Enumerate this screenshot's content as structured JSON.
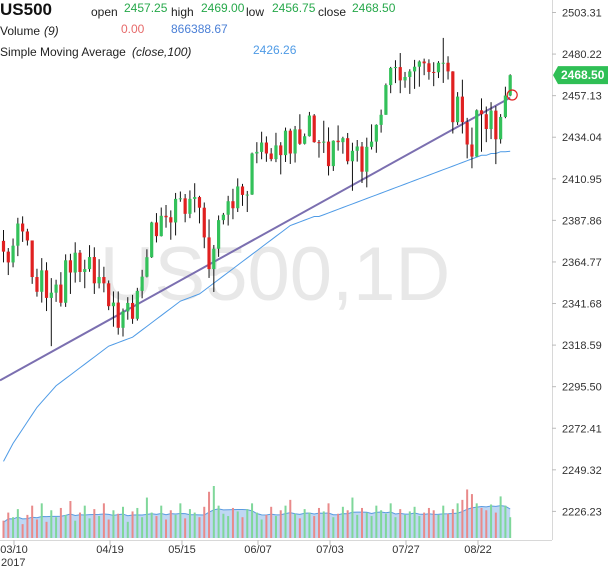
{
  "legend": {
    "symbol": "US500",
    "open_label": "open",
    "open": "2457.25",
    "high_label": "high",
    "high": "2469.00",
    "low_label": "low",
    "low": "2456.75",
    "close_label": "close",
    "close": "2468.50",
    "volume_label": "Volume",
    "volume_param": "(9)",
    "volume_value_1": "0.00",
    "volume_value_2": "866388.67",
    "sma_label": "Simple Moving Average",
    "sma_param": "(close,100)",
    "sma_value": "2426.26"
  },
  "colors": {
    "up": "#33c15a",
    "down": "#e02020",
    "sma": "#4f9be6",
    "trendline": "#7b6fb0",
    "volume_fill": "#a9c9ef",
    "volume_line": "#5a9be0",
    "last_price_bg": "#2fbf55"
  },
  "chart_data": {
    "type": "candlestick",
    "symbol": "US500",
    "interval": "1D",
    "watermark": "US500,1D",
    "x_ticks": [
      "03/10",
      "04/19",
      "05/15",
      "06/07",
      "07/03",
      "07/27",
      "08/22"
    ],
    "x_year": "2017",
    "y_ticks": [
      "2503.31",
      "2480.22",
      "2457.13",
      "2434.04",
      "2410.95",
      "2387.86",
      "2364.77",
      "2341.68",
      "2318.59",
      "2295.50",
      "2272.41",
      "2249.32",
      "2226.23"
    ],
    "ylim": [
      2215.0,
      2510.0
    ],
    "last_price": "2468.50",
    "sma_period": 100,
    "sma_values": [
      2254,
      2259,
      2264,
      2268,
      2272,
      2276,
      2280,
      2284,
      2287,
      2290,
      2293,
      2296,
      2298,
      2300,
      2302,
      2304,
      2306,
      2308,
      2310,
      2312,
      2314,
      2316,
      2318,
      2319,
      2320,
      2321,
      2322,
      2323,
      2325,
      2327,
      2329,
      2331,
      2333,
      2335,
      2337,
      2339,
      2341,
      2343,
      2344,
      2345,
      2346,
      2347,
      2349,
      2351,
      2353,
      2355,
      2357,
      2359,
      2361,
      2363,
      2365,
      2367,
      2369,
      2371,
      2373,
      2375,
      2377,
      2379,
      2381,
      2383,
      2385,
      2386,
      2387,
      2388,
      2389,
      2390,
      2390,
      2391,
      2392,
      2393,
      2394,
      2395,
      2396,
      2397,
      2398,
      2399,
      2400,
      2401,
      2402,
      2403,
      2404,
      2405,
      2406,
      2407,
      2408,
      2409,
      2410,
      2411,
      2412,
      2413,
      2414,
      2415,
      2416,
      2417,
      2418,
      2419,
      2420,
      2421,
      2422,
      2423,
      2424,
      2424,
      2425,
      2425,
      2426,
      2426,
      2426.26
    ],
    "trendline": {
      "from": [
        0,
        2299
      ],
      "to": [
        106,
        2456
      ]
    },
    "ohlc": [
      [
        2376.5,
        2382.5,
        2364.5,
        2370.5
      ],
      [
        2370.5,
        2372.5,
        2357.5,
        2364.5
      ],
      [
        2364.5,
        2377.8,
        2361.8,
        2373.8
      ],
      [
        2373.8,
        2389.3,
        2368.0,
        2386.1
      ],
      [
        2386.1,
        2390.1,
        2375.9,
        2381.7
      ],
      [
        2381.7,
        2383.2,
        2373.9,
        2376.7
      ],
      [
        2376.7,
        2376.7,
        2352.6,
        2356.4
      ],
      [
        2356.4,
        2361.0,
        2345.5,
        2348.2
      ],
      [
        2348.2,
        2366.9,
        2342.2,
        2360.1
      ],
      [
        2360.1,
        2364.6,
        2337.5,
        2344.8
      ],
      [
        2344.8,
        2355.8,
        2318.0,
        2347.7
      ],
      [
        2347.7,
        2354.9,
        2342.6,
        2352.2
      ],
      [
        2352.2,
        2359.1,
        2340.0,
        2342.1
      ],
      [
        2342.1,
        2369.0,
        2339.8,
        2365.7
      ],
      [
        2365.7,
        2369.3,
        2347.0,
        2358.9
      ],
      [
        2358.9,
        2375.7,
        2353.3,
        2369.9
      ],
      [
        2369.9,
        2371.4,
        2353.6,
        2359.2
      ],
      [
        2359.2,
        2366.0,
        2350.2,
        2360.8
      ],
      [
        2360.8,
        2374.1,
        2359.3,
        2367.5
      ],
      [
        2367.5,
        2372.9,
        2347.0,
        2352.9
      ],
      [
        2352.9,
        2366.3,
        2350.1,
        2356.4
      ],
      [
        2356.4,
        2362.1,
        2347.9,
        2352.9
      ],
      [
        2352.9,
        2354.5,
        2338.0,
        2340.2
      ],
      [
        2340.2,
        2348.4,
        2328.8,
        2342.2
      ],
      [
        2342.2,
        2348.4,
        2324.4,
        2328.2
      ],
      [
        2328.2,
        2338.9,
        2323.4,
        2337.3
      ],
      [
        2337.3,
        2345.2,
        2332.7,
        2342.0
      ],
      [
        2342.0,
        2346.5,
        2330.4,
        2333.2
      ],
      [
        2333.2,
        2350.4,
        2332.2,
        2348.7
      ],
      [
        2348.7,
        2360.4,
        2344.6,
        2356.6
      ],
      [
        2356.6,
        2371.8,
        2356.2,
        2367.4
      ],
      [
        2367.4,
        2387.1,
        2367.0,
        2386.7
      ],
      [
        2386.7,
        2391.9,
        2375.6,
        2379.1
      ],
      [
        2379.1,
        2395.0,
        2378.9,
        2390.4
      ],
      [
        2390.4,
        2396.4,
        2383.8,
        2389.6
      ],
      [
        2389.6,
        2393.4,
        2377.1,
        2386.7
      ],
      [
        2386.7,
        2403.1,
        2379.5,
        2399.8
      ],
      [
        2399.8,
        2403.9,
        2398.2,
        2400.1
      ],
      [
        2400.1,
        2402.5,
        2386.8,
        2391.5
      ],
      [
        2391.5,
        2404.5,
        2389.1,
        2399.8
      ],
      [
        2399.8,
        2408.5,
        2392.3,
        2400.8
      ],
      [
        2400.8,
        2401.5,
        2386.2,
        2394.9
      ],
      [
        2394.9,
        2397.8,
        2372.4,
        2378.4
      ],
      [
        2378.4,
        2388.4,
        2355.9,
        2360.8
      ],
      [
        2360.8,
        2374.2,
        2348.1,
        2372.1
      ],
      [
        2372.1,
        2390.6,
        2367.6,
        2388.0
      ],
      [
        2388.0,
        2392.0,
        2385.6,
        2391.0
      ],
      [
        2391.0,
        2401.5,
        2385.0,
        2398.5
      ],
      [
        2398.5,
        2405.4,
        2388.5,
        2394.6
      ],
      [
        2394.6,
        2411.2,
        2392.5,
        2406.7
      ],
      [
        2406.7,
        2408.1,
        2395.9,
        2402.0
      ],
      [
        2402.0,
        2404.2,
        2392.5,
        2402.2
      ],
      [
        2402.2,
        2425.5,
        2402.0,
        2425.0
      ],
      [
        2425.0,
        2431.3,
        2419.6,
        2425.9
      ],
      [
        2425.9,
        2437.1,
        2421.8,
        2431.1
      ],
      [
        2431.1,
        2434.5,
        2420.4,
        2425.0
      ],
      [
        2425.0,
        2428.0,
        2420.7,
        2421.9
      ],
      [
        2421.9,
        2436.5,
        2420.2,
        2429.5
      ],
      [
        2429.5,
        2431.3,
        2413.4,
        2424.1
      ],
      [
        2424.1,
        2439.4,
        2420.3,
        2437.7
      ],
      [
        2437.7,
        2438.8,
        2419.2,
        2425.0
      ],
      [
        2425.0,
        2440.3,
        2420.0,
        2438.4
      ],
      [
        2438.4,
        2446.8,
        2429.8,
        2430.4
      ],
      [
        2430.4,
        2436.1,
        2430.0,
        2434.6
      ],
      [
        2434.6,
        2448.1,
        2434.4,
        2446.1
      ],
      [
        2446.1,
        2446.9,
        2431.0,
        2431.3
      ],
      [
        2431.3,
        2432.5,
        2422.7,
        2431.0
      ],
      [
        2431.0,
        2443.2,
        2425.3,
        2431.6
      ],
      [
        2431.6,
        2439.5,
        2412.8,
        2418.0
      ],
      [
        2418.0,
        2432.3,
        2415.3,
        2432.1
      ],
      [
        2432.1,
        2440.6,
        2426.6,
        2431.3
      ],
      [
        2431.3,
        2434.3,
        2424.9,
        2433.5
      ],
      [
        2433.5,
        2436.4,
        2419.0,
        2420.7
      ],
      [
        2420.7,
        2431.0,
        2404.3,
        2426.5
      ],
      [
        2426.5,
        2432.5,
        2420.5,
        2428.9
      ],
      [
        2428.9,
        2431.4,
        2408.6,
        2414.9
      ],
      [
        2414.9,
        2433.8,
        2406.2,
        2428.7
      ],
      [
        2428.7,
        2441.2,
        2427.2,
        2431.6
      ],
      [
        2431.6,
        2441.2,
        2425.4,
        2440.9
      ],
      [
        2440.9,
        2449.4,
        2436.6,
        2446.5
      ],
      [
        2446.5,
        2463.9,
        2446.5,
        2463.0
      ],
      [
        2463.0,
        2473.1,
        2458.5,
        2472.5
      ],
      [
        2472.5,
        2476.8,
        2464.1,
        2473.0
      ],
      [
        2473.0,
        2480.8,
        2458.5,
        2465.6
      ],
      [
        2465.6,
        2470.3,
        2461.5,
        2467.5
      ],
      [
        2467.5,
        2471.8,
        2458.1,
        2470.6
      ],
      [
        2470.6,
        2477.0,
        2460.9,
        2473.2
      ],
      [
        2473.2,
        2476.7,
        2462.1,
        2476.1
      ],
      [
        2476.1,
        2477.7,
        2468.5,
        2475.1
      ],
      [
        2475.1,
        2477.3,
        2466.0,
        2470.3
      ],
      [
        2470.3,
        2475.7,
        2462.4,
        2470.1
      ],
      [
        2470.1,
        2476.3,
        2466.9,
        2475.4
      ],
      [
        2475.4,
        2489.2,
        2464.2,
        2475.4
      ],
      [
        2475.4,
        2479.0,
        2466.1,
        2470.6
      ],
      [
        2470.6,
        2470.7,
        2436.1,
        2442.4
      ],
      [
        2442.4,
        2459.1,
        2440.8,
        2456.6
      ],
      [
        2456.6,
        2466.0,
        2436.1,
        2442.4
      ],
      [
        2442.4,
        2444.8,
        2422.3,
        2430.0
      ],
      [
        2430.0,
        2439.4,
        2416.8,
        2423.3
      ],
      [
        2423.3,
        2449.5,
        2423.2,
        2449.0
      ],
      [
        2449.0,
        2455.6,
        2426.0,
        2446.8
      ],
      [
        2446.8,
        2451.1,
        2431.3,
        2438.6
      ],
      [
        2438.6,
        2453.5,
        2433.0,
        2448.8
      ],
      [
        2448.8,
        2451.3,
        2419.1,
        2432.9
      ],
      [
        2432.9,
        2446.9,
        2430.5,
        2445.3
      ],
      [
        2445.3,
        2462.1,
        2444.6,
        2457.2
      ],
      [
        2457.2,
        2469.0,
        2456.8,
        2468.5
      ]
    ],
    "volume": [
      15,
      22,
      18,
      25,
      12,
      20,
      28,
      16,
      30,
      14,
      24,
      18,
      26,
      20,
      32,
      15,
      22,
      28,
      17,
      25,
      19,
      30,
      16,
      24,
      21,
      27,
      14,
      23,
      26,
      18,
      35,
      22,
      19,
      28,
      16,
      24,
      20,
      30,
      17,
      25,
      22,
      18,
      27,
      40,
      45,
      28,
      21,
      19,
      26,
      23,
      18,
      25,
      30,
      22,
      16,
      20,
      27,
      19,
      24,
      28,
      33,
      21,
      17,
      25,
      22,
      19,
      26,
      23,
      30,
      18,
      21,
      27,
      24,
      35,
      20,
      26,
      22,
      19,
      28,
      24,
      21,
      30,
      18,
      25,
      20,
      23,
      27,
      19,
      22,
      26,
      24,
      20,
      28,
      21,
      25,
      30,
      33,
      42,
      38,
      30,
      26,
      24,
      29,
      22,
      36,
      28,
      18
    ]
  }
}
